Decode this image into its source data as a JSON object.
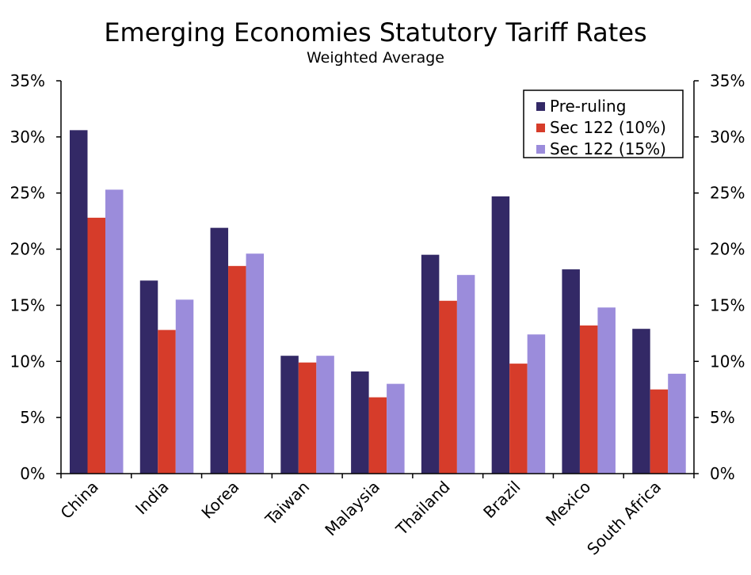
{
  "chart_data": {
    "type": "bar",
    "title": "Emerging Economies Statutory Tariff Rates",
    "subtitle": "Weighted Average",
    "categories": [
      "China",
      "India",
      "Korea",
      "Taiwan",
      "Malaysia",
      "Thailand",
      "Brazil",
      "Mexico",
      "South Africa"
    ],
    "series": [
      {
        "name": "Pre-ruling",
        "color": "#332966",
        "values": [
          30.6,
          17.2,
          21.9,
          10.5,
          9.1,
          19.5,
          24.7,
          18.2,
          12.9
        ]
      },
      {
        "name": "Sec 122 (10%)",
        "color": "#d63c2a",
        "values": [
          22.8,
          12.8,
          18.5,
          9.9,
          6.8,
          15.4,
          9.8,
          13.2,
          7.5
        ]
      },
      {
        "name": "Sec 122 (15%)",
        "color": "#9b8cdb",
        "values": [
          25.3,
          15.5,
          19.6,
          10.5,
          8.0,
          17.7,
          12.4,
          14.8,
          8.9
        ]
      }
    ],
    "ylim": [
      0,
      35
    ],
    "yticks": [
      "0%",
      "5%",
      "10%",
      "15%",
      "20%",
      "25%",
      "30%",
      "35%"
    ],
    "ytick_values": [
      0,
      5,
      10,
      15,
      20,
      25,
      30,
      35
    ],
    "xlabel": "",
    "ylabel": "",
    "legend_position": "top-right",
    "grid": false,
    "secondary_y_axis": true
  }
}
